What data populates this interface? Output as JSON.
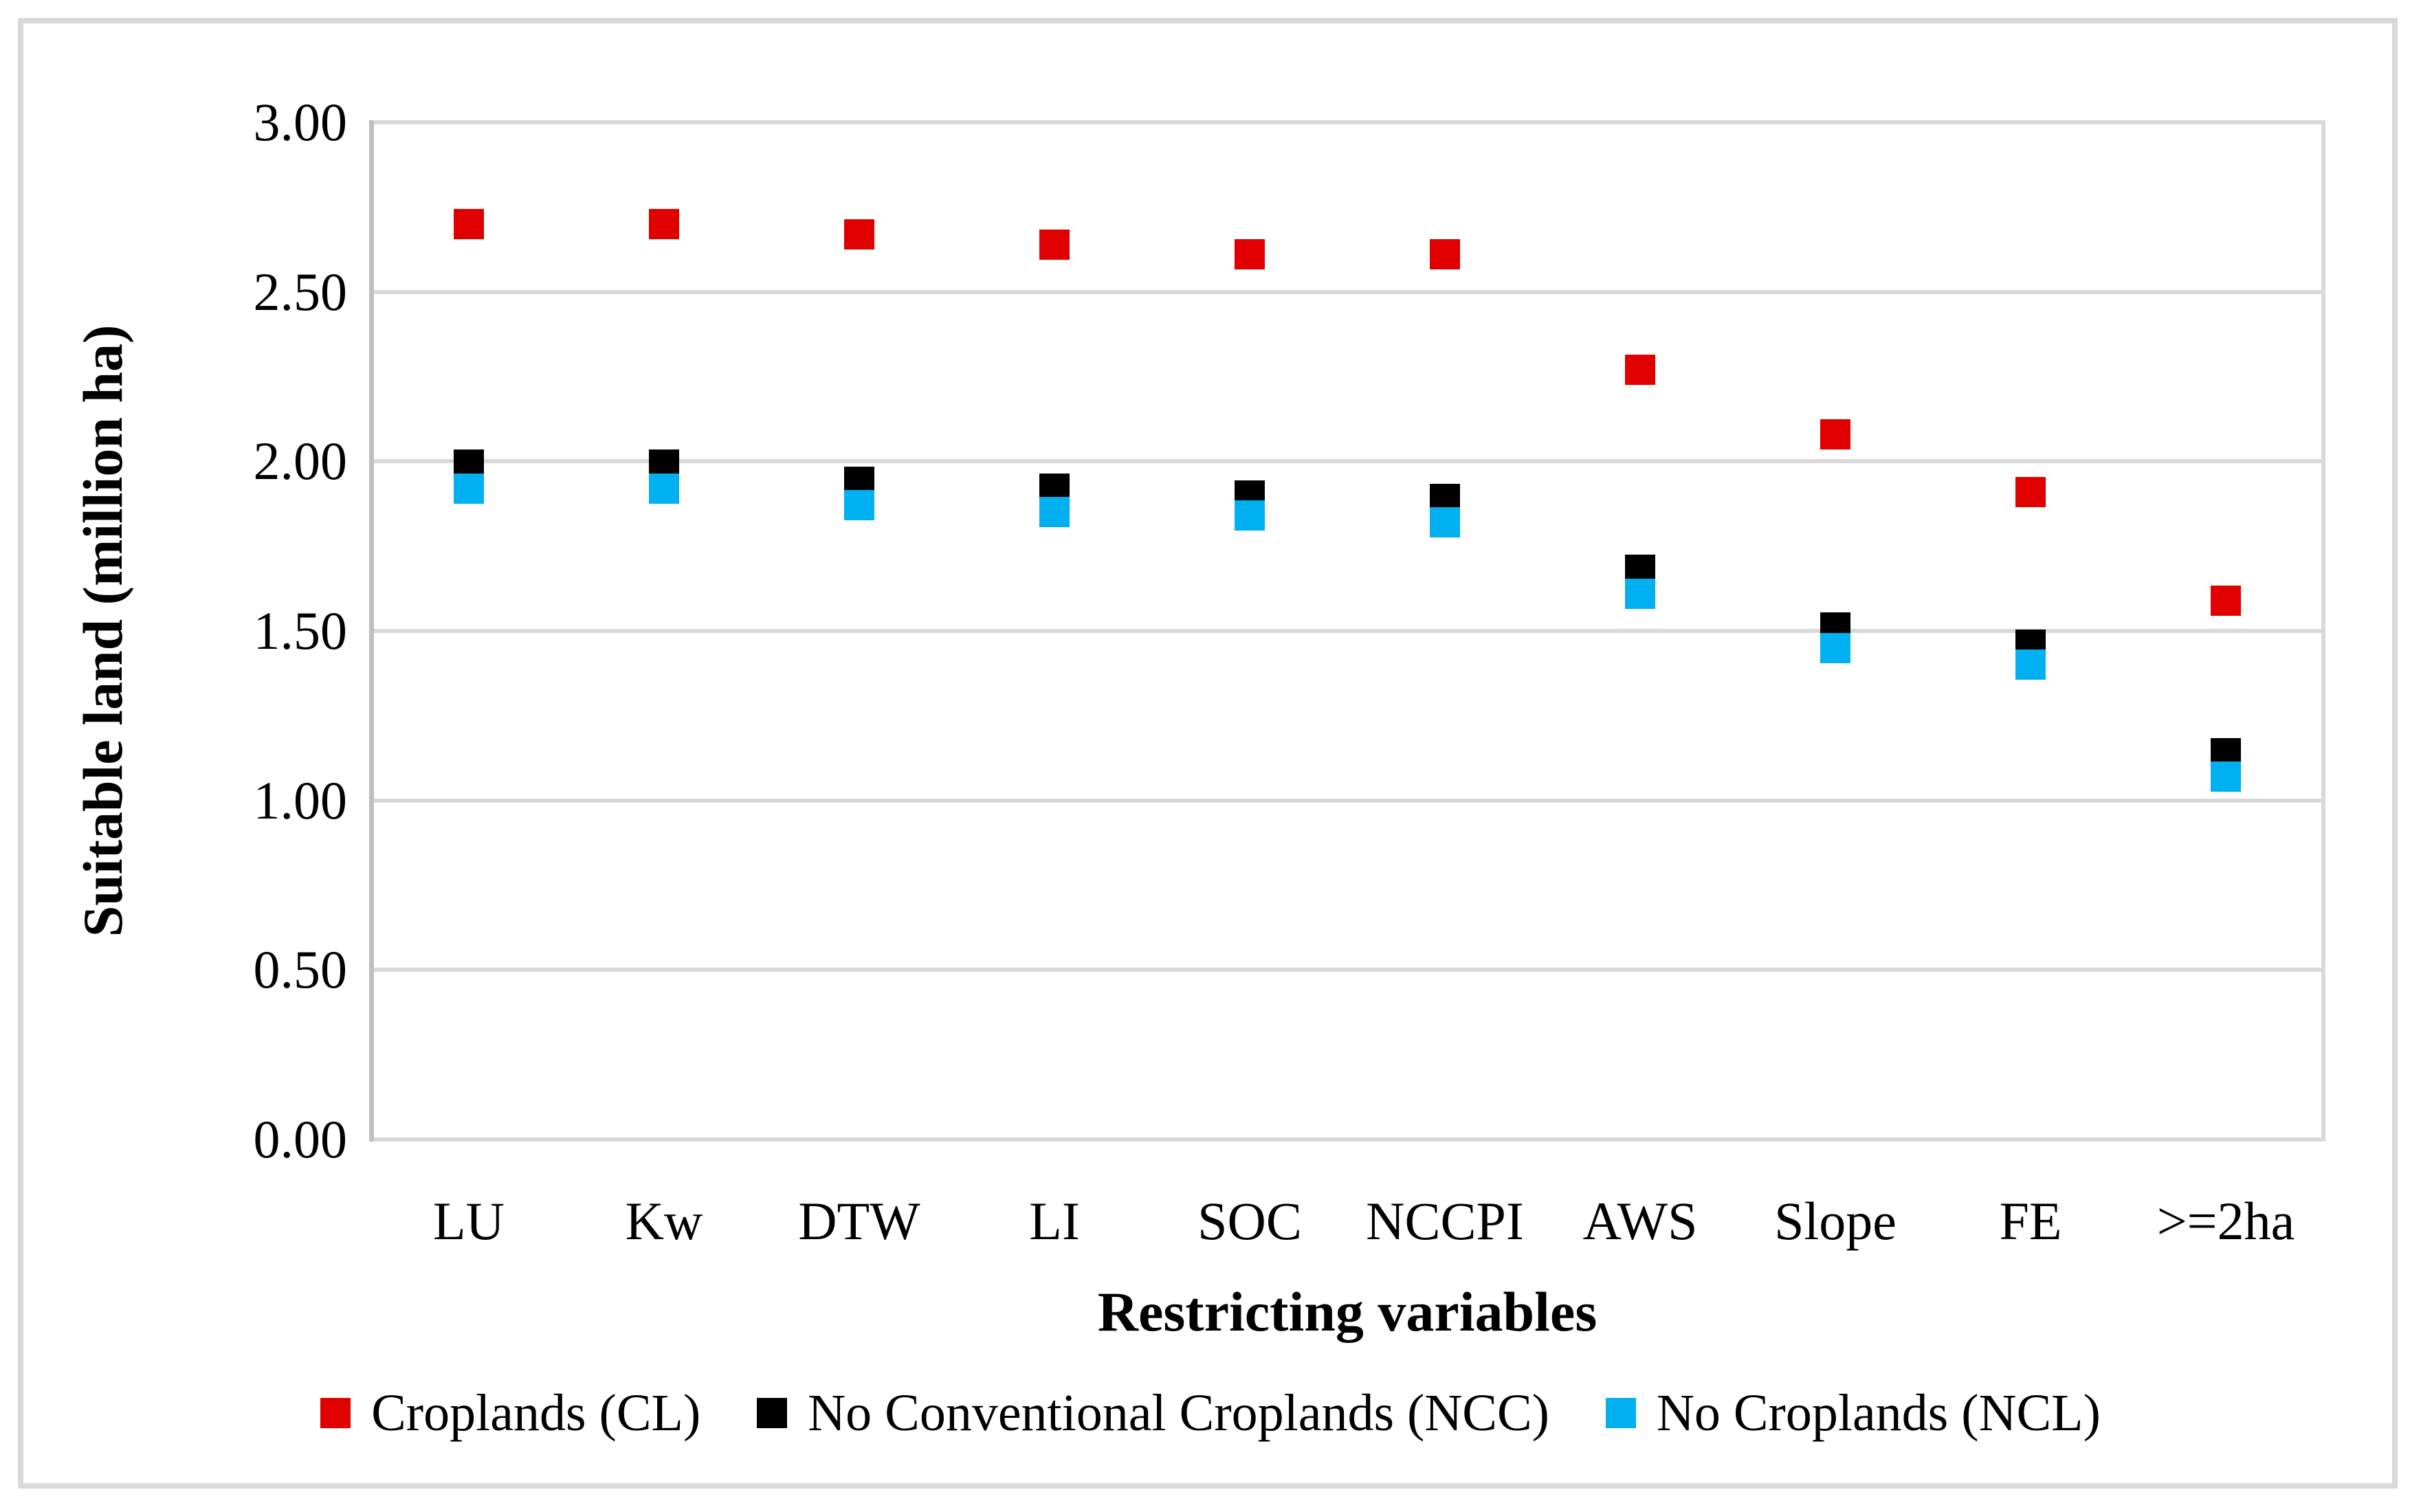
{
  "figure": {
    "background": "#ffffff",
    "border_color": "#d9d9d9",
    "gridline_color": "#d9d9d9",
    "axis_line_color": "#bfbfbf"
  },
  "chart_data": {
    "type": "scatter",
    "title": "",
    "xlabel": "Restricting variables",
    "ylabel": "Suitable land (million ha)",
    "categories": [
      "LU",
      "Kw",
      "DTW",
      "LI",
      "SOC",
      "NCCPI",
      "AWS",
      "Slope",
      "FE",
      ">=2ha"
    ],
    "ylim": [
      0,
      3
    ],
    "ytick_step": 0.5,
    "ytick_labels": [
      "3.00",
      "2.50",
      "2.00",
      "1.50",
      "1.00",
      "0.50",
      "0.00"
    ],
    "grid": true,
    "legend_position": "bottom",
    "marker_shape": "square",
    "series": [
      {
        "name": "Croplands (CL)",
        "color": "#e00000",
        "values": [
          2.7,
          2.7,
          2.67,
          2.64,
          2.61,
          2.61,
          2.27,
          2.08,
          1.91,
          1.59
        ]
      },
      {
        "name": "No Conventional Croplands (NCC)",
        "color": "#000000",
        "values": [
          1.99,
          1.99,
          1.94,
          1.92,
          1.9,
          1.89,
          1.68,
          1.51,
          1.46,
          1.14
        ]
      },
      {
        "name": "No Croplands (NCL)",
        "color": "#00b0f0",
        "values": [
          1.92,
          1.92,
          1.87,
          1.85,
          1.84,
          1.82,
          1.61,
          1.45,
          1.4,
          1.07
        ]
      }
    ]
  }
}
